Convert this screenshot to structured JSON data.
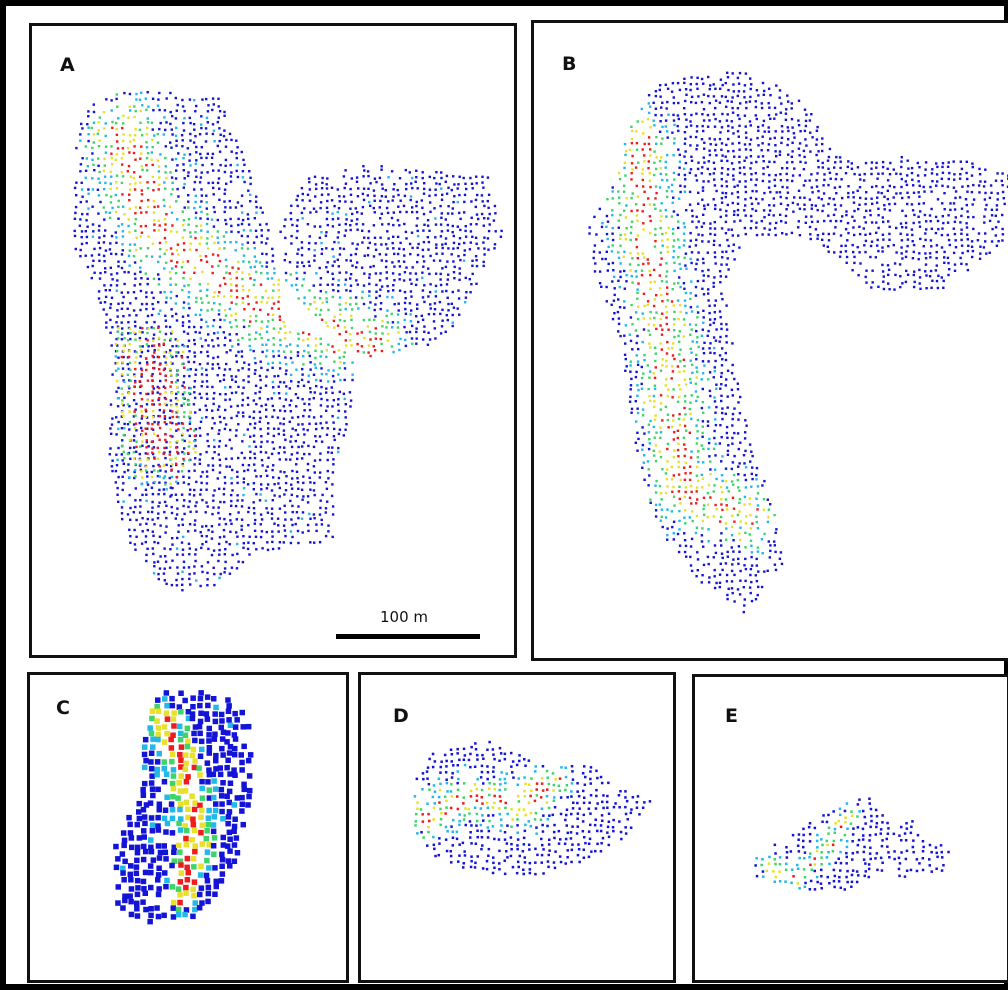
{
  "panels": [
    {
      "id": "a",
      "label": "A"
    },
    {
      "id": "b",
      "label": "B"
    },
    {
      "id": "c",
      "label": "C"
    },
    {
      "id": "d",
      "label": "D"
    },
    {
      "id": "e",
      "label": "E"
    }
  ],
  "scale_bar": {
    "label": "100 m"
  },
  "colors": {
    "low": "#1414d6",
    "mid_low": "#22b8e8",
    "mid": "#3fd46a",
    "mid_high": "#e8e02a",
    "high": "#ee1c1c"
  }
}
